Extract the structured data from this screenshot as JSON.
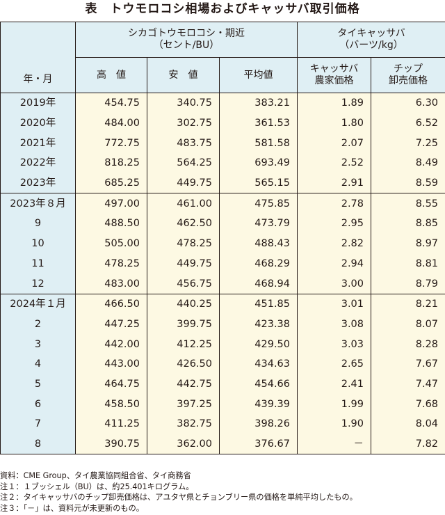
{
  "title": "表　トウモロコシ相場およびキャッサバ取引価格",
  "header": {
    "year_month": "年・月",
    "group_corn_line1": "シカゴトウモロコシ・期近",
    "group_corn_line2": "（セント/BU）",
    "group_cassava_line1": "タイキャッサバ",
    "group_cassava_line2": "（バーツ/kg）",
    "high": "高　値",
    "low": "安　値",
    "avg": "平均値",
    "farm_line1": "キャッサバ",
    "farm_line2": "農家価格",
    "chip_line1": "チップ",
    "chip_line2": "卸売価格"
  },
  "rows": [
    {
      "period": "2019年",
      "high": "454.75",
      "low": "340.75",
      "avg": "383.21",
      "farm": "1.89",
      "chip": "6.30"
    },
    {
      "period": "2020年",
      "high": "484.00",
      "low": "302.75",
      "avg": "361.53",
      "farm": "1.80",
      "chip": "6.52"
    },
    {
      "period": "2021年",
      "high": "772.75",
      "low": "483.75",
      "avg": "581.58",
      "farm": "2.07",
      "chip": "7.25"
    },
    {
      "period": "2022年",
      "high": "818.25",
      "low": "564.25",
      "avg": "693.49",
      "farm": "2.52",
      "chip": "8.49"
    },
    {
      "period": "2023年",
      "high": "685.25",
      "low": "449.75",
      "avg": "565.15",
      "farm": "2.91",
      "chip": "8.59"
    },
    {
      "period": "2023年８月",
      "high": "497.00",
      "low": "461.00",
      "avg": "475.85",
      "farm": "2.78",
      "chip": "8.55"
    },
    {
      "period": "9",
      "high": "488.50",
      "low": "462.50",
      "avg": "473.79",
      "farm": "2.95",
      "chip": "8.85"
    },
    {
      "period": "10",
      "high": "505.00",
      "low": "478.25",
      "avg": "488.43",
      "farm": "2.82",
      "chip": "8.97"
    },
    {
      "period": "11",
      "high": "478.25",
      "low": "449.75",
      "avg": "468.29",
      "farm": "2.94",
      "chip": "8.81"
    },
    {
      "period": "12",
      "high": "483.00",
      "low": "456.75",
      "avg": "468.94",
      "farm": "3.00",
      "chip": "8.79"
    },
    {
      "period": "2024年１月",
      "high": "466.50",
      "low": "440.25",
      "avg": "451.85",
      "farm": "3.01",
      "chip": "8.21"
    },
    {
      "period": "2",
      "high": "447.25",
      "low": "399.75",
      "avg": "423.38",
      "farm": "3.08",
      "chip": "8.07"
    },
    {
      "period": "3",
      "high": "442.00",
      "low": "412.25",
      "avg": "429.50",
      "farm": "3.03",
      "chip": "8.28"
    },
    {
      "period": "4",
      "high": "443.00",
      "low": "426.50",
      "avg": "434.63",
      "farm": "2.65",
      "chip": "7.67"
    },
    {
      "period": "5",
      "high": "464.75",
      "low": "442.75",
      "avg": "454.66",
      "farm": "2.41",
      "chip": "7.47"
    },
    {
      "period": "6",
      "high": "458.50",
      "low": "397.25",
      "avg": "439.39",
      "farm": "1.99",
      "chip": "7.68"
    },
    {
      "period": "7",
      "high": "411.25",
      "low": "382.75",
      "avg": "398.26",
      "farm": "1.90",
      "chip": "8.04"
    },
    {
      "period": "8",
      "high": "390.75",
      "low": "362.00",
      "avg": "376.67",
      "farm": "－",
      "chip": "7.82"
    }
  ],
  "notes": [
    "資料：CME Group、タイ農業協同組合省、タイ商務省",
    "注１：１ブッシェル（BU）は、約25.401キログラム。",
    "注２：タイキャッサバのチップ卸売価格は、アユタヤ県とチョンブリー県の価格を単純平均したもの。",
    "注３：「－」は、資料元が未更新のもの。"
  ]
}
